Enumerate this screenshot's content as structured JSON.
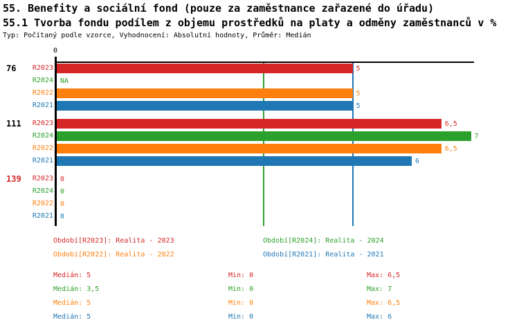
{
  "header": {
    "title": "55. Benefity a sociální fond (pouze za zaměstnance zařazené do úřadu)",
    "subtitle": "55.1 Tvorba fondu podílem z objemu prostředků na platy a odměny zaměstnanců v %",
    "meta": "Typ: Počítaný podle vzorce, Vyhodnocení: Absolutní hodnoty, Průměr: Medián"
  },
  "axis": {
    "zero_label": "0"
  },
  "colors": {
    "red": "#d62728",
    "green": "#2ca02c",
    "orange": "#ff7f0e",
    "blue": "#1f77b4",
    "axis": "#000000",
    "highlight_group_label": "#d62728"
  },
  "series": [
    {
      "id": "R2023",
      "label": "R2023",
      "color": "#d62728",
      "legend": "Období[R2023]: Realita - 2023",
      "stats": {
        "median": "Medián: 5",
        "min": "Min: 0",
        "max": "Max: 6,5"
      }
    },
    {
      "id": "R2024",
      "label": "R2024",
      "color": "#2ca02c",
      "legend": "Období[R2024]: Realita - 2024",
      "stats": {
        "median": "Medián: 3,5",
        "min": "Min: 0",
        "max": "Max: 7"
      }
    },
    {
      "id": "R2022",
      "label": "R2022",
      "color": "#ff7f0e",
      "legend": "Období[R2022]: Realita - 2022",
      "stats": {
        "median": "Medián: 5",
        "min": "Min: 0",
        "max": "Max: 6,5"
      }
    },
    {
      "id": "R2021",
      "label": "R2021",
      "color": "#1f77b4",
      "legend": "Období[R2021]: Realita - 2021",
      "stats": {
        "median": "Medián: 5",
        "min": "Min: 0",
        "max": "Max: 6"
      }
    }
  ],
  "chart_data": {
    "type": "bar",
    "orientation": "horizontal",
    "value_axis": {
      "min": 0,
      "max": 7.05,
      "ticks": [
        0
      ],
      "grid": false
    },
    "categories": [
      "76",
      "111",
      "139"
    ],
    "series_order": [
      "R2023",
      "R2024",
      "R2022",
      "R2021"
    ],
    "groups": [
      {
        "label": "76",
        "label_color": "#000000",
        "bars": [
          {
            "series": "R2023",
            "value": 5,
            "text": "5"
          },
          {
            "series": "R2024",
            "value": null,
            "text": "NA"
          },
          {
            "series": "R2022",
            "value": 5,
            "text": "5"
          },
          {
            "series": "R2021",
            "value": 5,
            "text": "5"
          }
        ]
      },
      {
        "label": "111",
        "label_color": "#000000",
        "bars": [
          {
            "series": "R2023",
            "value": 6.5,
            "text": "6,5"
          },
          {
            "series": "R2024",
            "value": 7,
            "text": "7"
          },
          {
            "series": "R2022",
            "value": 6.5,
            "text": "6,5"
          },
          {
            "series": "R2021",
            "value": 6,
            "text": "6"
          }
        ]
      },
      {
        "label": "139",
        "label_color": "#d62728",
        "bars": [
          {
            "series": "R2023",
            "value": 0,
            "text": "0"
          },
          {
            "series": "R2024",
            "value": 0,
            "text": "0"
          },
          {
            "series": "R2022",
            "value": 0,
            "text": "0"
          },
          {
            "series": "R2021",
            "value": 0,
            "text": "0"
          }
        ]
      }
    ],
    "median_lines": [
      {
        "series": "R2023",
        "value": 5
      },
      {
        "series": "R2024",
        "value": 3.5
      },
      {
        "series": "R2022",
        "value": 5
      },
      {
        "series": "R2021",
        "value": 5
      }
    ]
  }
}
